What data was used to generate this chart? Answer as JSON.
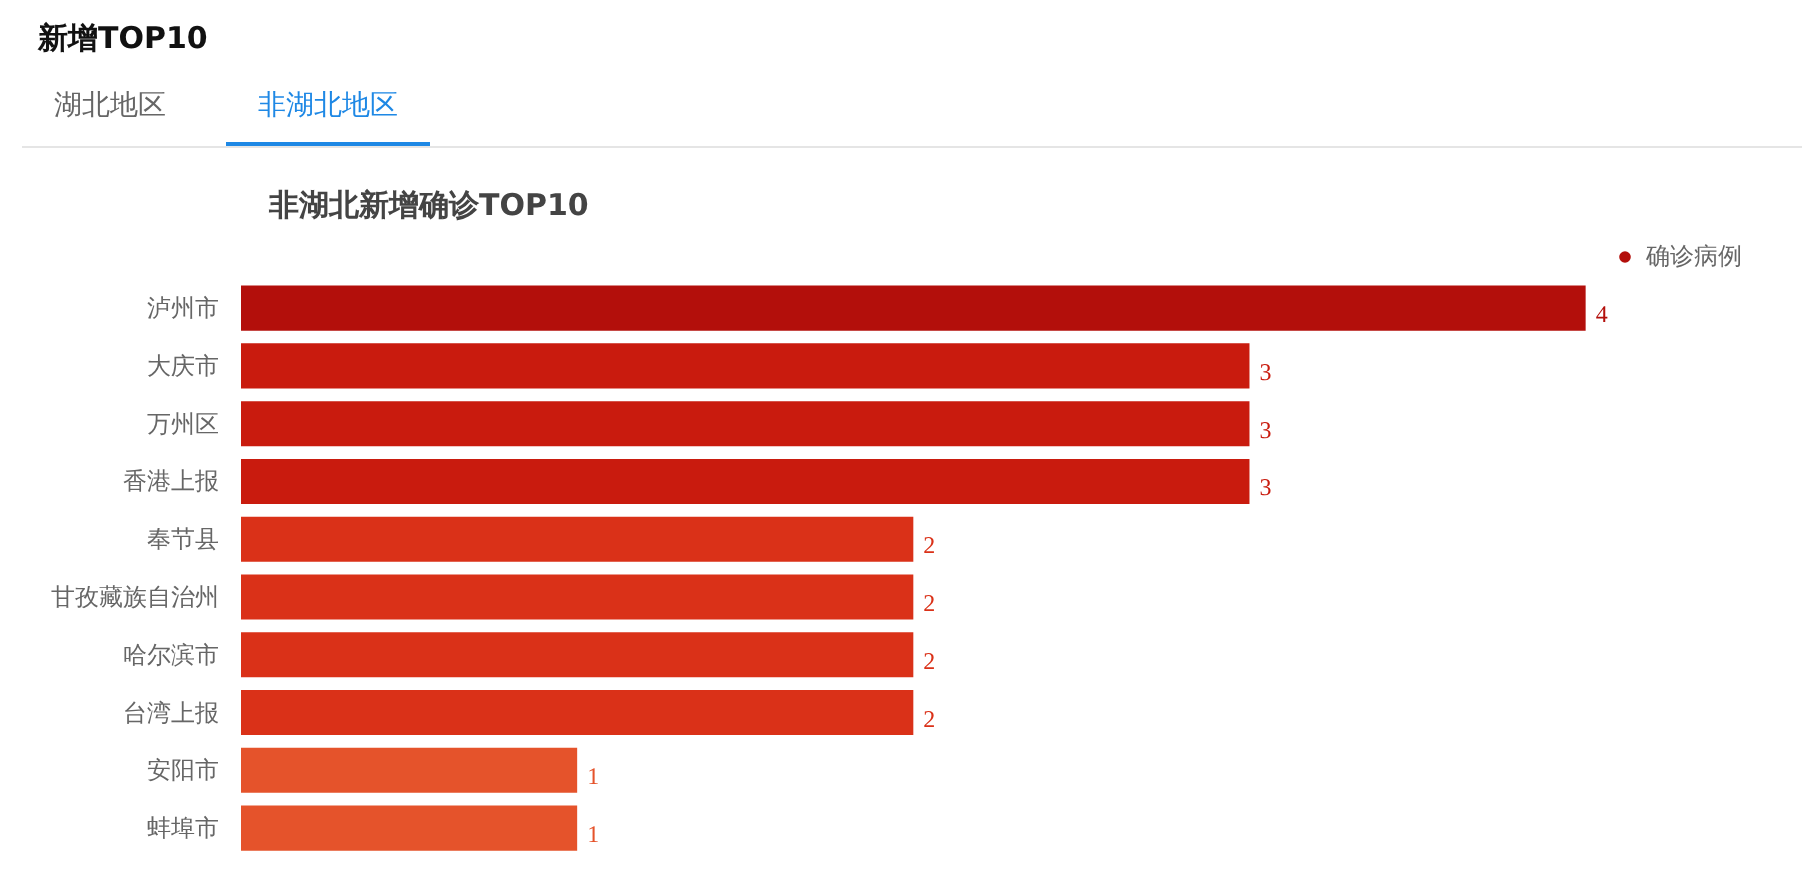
{
  "chart_data": {
    "type": "bar",
    "orientation": "horizontal",
    "title": "非湖北新增确诊TOP10",
    "annotations": [
      "新增TOP10",
      "湖北地区",
      "非湖北地区"
    ],
    "categories": [
      "泸州市",
      "大庆市",
      "万州区",
      "香港上报",
      "奉节县",
      "甘孜藏族自治州",
      "哈尔滨市",
      "台湾上报",
      "安阳市",
      "蚌埠市"
    ],
    "series": [
      {
        "name": "确诊病例",
        "values": [
          4,
          3,
          3,
          3,
          2,
          2,
          2,
          2,
          1,
          1
        ],
        "colors": [
          "#b30f0b",
          "#c91b0e",
          "#c91b0e",
          "#c91b0e",
          "#da3118",
          "#da3118",
          "#da3118",
          "#da3118",
          "#e5532b",
          "#e5532b"
        ]
      }
    ],
    "data_labels": true,
    "legend": "top right",
    "grid": false
  }
}
